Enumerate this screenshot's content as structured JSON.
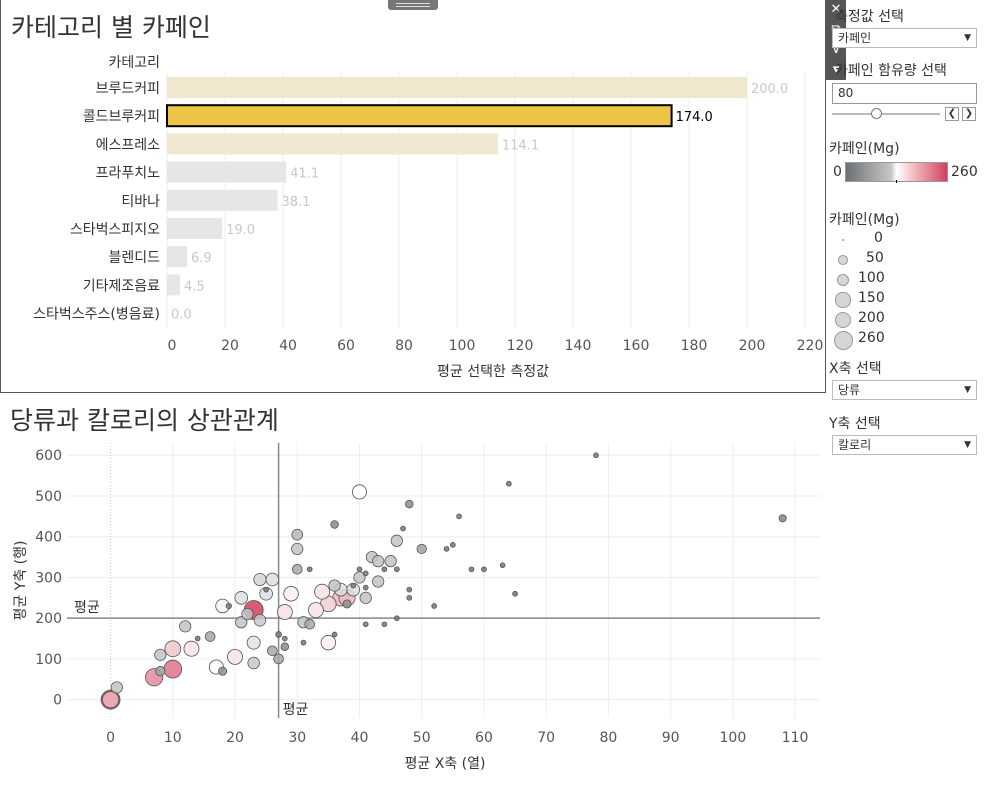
{
  "bar_chart": {
    "title": "카테고리 별 카페인",
    "category_header": "카테고리",
    "xlabel": "평균 선택한 측정값",
    "xticks": [
      "0",
      "20",
      "40",
      "60",
      "80",
      "100",
      "120",
      "140",
      "160",
      "180",
      "200",
      "220"
    ]
  },
  "scatter_chart": {
    "title": "당류과 칼로리의 상관관계",
    "xlabel": "평균 X축 (열)",
    "ylabel": "평균 Y축 (행)",
    "xticks": [
      "0",
      "10",
      "20",
      "30",
      "40",
      "50",
      "60",
      "70",
      "80",
      "90",
      "100",
      "110"
    ],
    "yticks": [
      "0",
      "100",
      "200",
      "300",
      "400",
      "500",
      "600"
    ],
    "ref_x_label": "평균",
    "ref_y_label": "평균"
  },
  "sidebar": {
    "measure_label": "측정값 선택",
    "measure_value": "카페인",
    "caffeine_filter_label": "카페인 함유량 선택",
    "caffeine_filter_value": "80",
    "color_legend_title": "카페인(Mg)",
    "color_min": "0",
    "color_max": "260",
    "size_legend_title": "카페인(Mg)",
    "size_legend": [
      "0",
      "50",
      "100",
      "150",
      "200",
      "260"
    ],
    "x_axis_label": "X축 선택",
    "x_axis_value": "당류",
    "y_axis_label": "Y축 선택",
    "y_axis_value": "칼로리"
  },
  "icons": [
    "close-icon",
    "popout-icon",
    "filter-icon",
    "more-icon",
    "drag-handle-icon",
    "chevron-left-icon",
    "chevron-right-icon",
    "dropdown-arrow-icon"
  ],
  "colors": {
    "highlight": "#ecc546",
    "bar_light": "#f0e7cf",
    "bar_gray": "#e6e6e6",
    "accent_red": "#d2405e"
  },
  "chart_data": [
    {
      "type": "bar",
      "orientation": "horizontal",
      "title": "카테고리 별 카페인",
      "xlabel": "평균 선택한 측정값",
      "categories": [
        "브루드커피",
        "콜드브루커피",
        "에스프레소",
        "프라푸치노",
        "티바나",
        "스타벅스피지오",
        "블렌디드",
        "기타제조음료",
        "스타벅스주스(병음료)"
      ],
      "values": [
        200.0,
        174.0,
        114.1,
        41.1,
        38.1,
        19.0,
        6.9,
        4.5,
        0.0
      ],
      "value_labels": [
        "200.0",
        "174.0",
        "114.1",
        "41.1",
        "38.1",
        "19.0",
        "6.9",
        "4.5",
        "0.0"
      ],
      "selected": "콜드브루커피",
      "xlim": [
        0,
        225
      ]
    },
    {
      "type": "scatter",
      "title": "당류과 칼로리의 상관관계",
      "xlabel": "평균 X축 (열)",
      "ylabel": "평균 Y축 (행)",
      "xlim": [
        -7,
        114
      ],
      "ylim": [
        -45,
        630
      ],
      "ref_lines": {
        "x": 27,
        "y": 200
      },
      "points": [
        [
          0,
          0,
          260
        ],
        [
          0,
          0,
          180
        ],
        [
          1,
          30,
          75
        ],
        [
          7,
          55,
          210
        ],
        [
          8,
          70,
          45
        ],
        [
          8,
          110,
          75
        ],
        [
          10,
          75,
          225
        ],
        [
          10,
          125,
          170
        ],
        [
          13,
          125,
          150
        ],
        [
          12,
          180,
          75
        ],
        [
          14,
          150,
          5
        ],
        [
          16,
          155,
          50
        ],
        [
          17,
          80,
          130
        ],
        [
          18,
          70,
          30
        ],
        [
          18,
          230,
          120
        ],
        [
          19,
          230,
          8
        ],
        [
          20,
          105,
          150
        ],
        [
          21,
          250,
          100
        ],
        [
          21,
          190,
          75
        ],
        [
          22,
          210,
          75
        ],
        [
          23,
          220,
          260
        ],
        [
          23,
          90,
          80
        ],
        [
          23,
          140,
          105
        ],
        [
          24,
          195,
          80
        ],
        [
          24,
          295,
          90
        ],
        [
          25,
          270,
          5
        ],
        [
          25,
          260,
          100
        ],
        [
          26,
          295,
          100
        ],
        [
          26,
          120,
          50
        ],
        [
          27,
          100,
          50
        ],
        [
          27,
          160,
          10
        ],
        [
          28,
          130,
          25
        ],
        [
          28,
          150,
          5
        ],
        [
          28,
          215,
          150
        ],
        [
          29,
          260,
          140
        ],
        [
          30,
          320,
          50
        ],
        [
          30,
          405,
          65
        ],
        [
          30,
          370,
          75
        ],
        [
          31,
          140,
          5
        ],
        [
          31,
          190,
          75
        ],
        [
          32,
          185,
          50
        ],
        [
          32,
          320,
          5
        ],
        [
          33,
          220,
          150
        ],
        [
          34,
          265,
          150
        ],
        [
          35,
          235,
          165
        ],
        [
          35,
          140,
          140
        ],
        [
          36,
          160,
          5
        ],
        [
          36,
          280,
          75
        ],
        [
          36,
          430,
          25
        ],
        [
          37,
          250,
          180
        ],
        [
          37,
          270,
          100
        ],
        [
          38,
          235,
          30
        ],
        [
          38,
          250,
          180
        ],
        [
          39,
          280,
          5
        ],
        [
          39,
          270,
          100
        ],
        [
          40,
          300,
          75
        ],
        [
          40,
          320,
          5
        ],
        [
          40,
          510,
          130
        ],
        [
          41,
          250,
          75
        ],
        [
          41,
          275,
          5
        ],
        [
          41,
          310,
          5
        ],
        [
          41,
          185,
          5
        ],
        [
          42,
          350,
          75
        ],
        [
          43,
          340,
          75
        ],
        [
          43,
          290,
          75
        ],
        [
          44,
          320,
          5
        ],
        [
          44,
          185,
          5
        ],
        [
          45,
          340,
          75
        ],
        [
          46,
          390,
          75
        ],
        [
          46,
          320,
          5
        ],
        [
          46,
          200,
          5
        ],
        [
          47,
          420,
          5
        ],
        [
          48,
          480,
          25
        ],
        [
          48,
          250,
          5
        ],
        [
          48,
          270,
          5
        ],
        [
          50,
          370,
          45
        ],
        [
          52,
          230,
          5
        ],
        [
          54,
          370,
          5
        ],
        [
          55,
          380,
          5
        ],
        [
          56,
          450,
          5
        ],
        [
          58,
          320,
          5
        ],
        [
          60,
          320,
          5
        ],
        [
          63,
          330,
          5
        ],
        [
          64,
          530,
          5
        ],
        [
          65,
          260,
          5
        ],
        [
          78,
          600,
          5
        ],
        [
          108,
          445,
          20
        ]
      ]
    }
  ]
}
